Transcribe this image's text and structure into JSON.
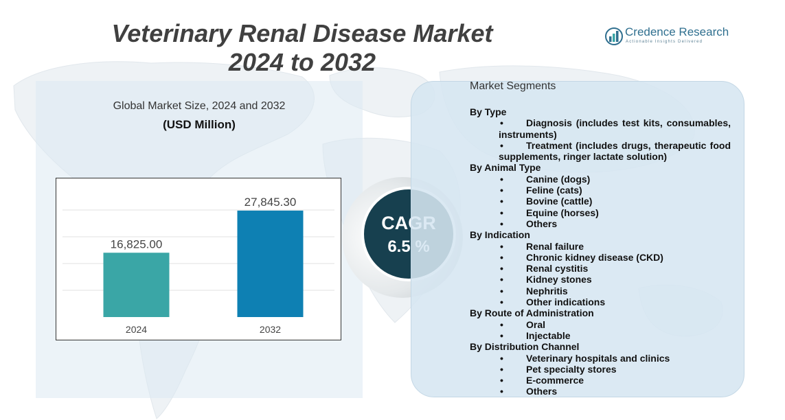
{
  "title": {
    "line1": "Veterinary Renal Disease Market",
    "line2": "2024 to 2032"
  },
  "logo": {
    "name": "Credence Research",
    "tagline": "Actionable Insights Delivered"
  },
  "colors": {
    "bar_2024": "#3aa6a6",
    "bar_2032": "#0e80b3",
    "cagr_bg": "#17404f",
    "panel": "#d6e6f1"
  },
  "chart_data": {
    "type": "bar",
    "title": "Global Market Size, 2024 and 2032",
    "ylabel": "(USD Million)",
    "xlabel": "",
    "categories": [
      "2024",
      "2032"
    ],
    "values": [
      16825.0,
      27845.3
    ],
    "data_labels": [
      "16,825.00",
      "27,845.30"
    ],
    "ylim": [
      0,
      35000
    ],
    "grid": true
  },
  "cagr": {
    "label": "CAGR",
    "value": "6.5 %"
  },
  "segments": {
    "title": "Market Segments",
    "groups": [
      {
        "heading": "By Type",
        "items": [
          "Diagnosis (includes test kits, consumables, instruments)",
          "Treatment (includes drugs, therapeutic food supplements, ringer lactate solution)"
        ]
      },
      {
        "heading": "By Animal Type",
        "items": [
          "Canine (dogs)",
          "Feline (cats)",
          "Bovine (cattle)",
          "Equine (horses)",
          "Others"
        ]
      },
      {
        "heading": "By Indication",
        "items": [
          "Renal failure",
          "Chronic kidney disease (CKD)",
          "Renal cystitis",
          "Kidney stones",
          "Nephritis",
          "Other indications"
        ]
      },
      {
        "heading": "By Route of Administration",
        "items": [
          "Oral",
          "Injectable"
        ]
      },
      {
        "heading": "By Distribution Channel",
        "items": [
          "Veterinary hospitals and clinics",
          "Pet specialty stores",
          "E-commerce",
          "Others"
        ]
      }
    ]
  }
}
